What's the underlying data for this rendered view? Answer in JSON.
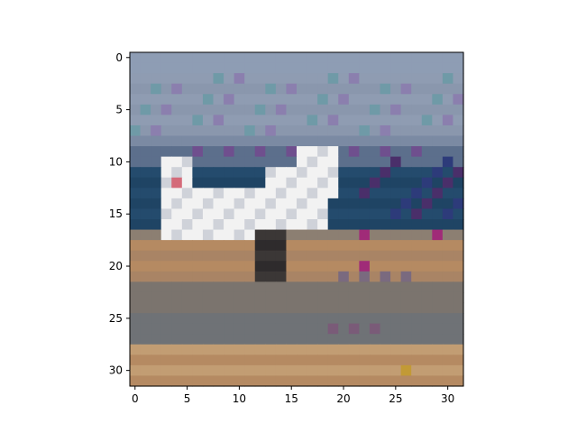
{
  "figure": {
    "x_ticks": [
      "0",
      "5",
      "10",
      "15",
      "20",
      "25",
      "30"
    ],
    "y_ticks": [
      "0",
      "5",
      "10",
      "15",
      "20",
      "25",
      "30"
    ]
  },
  "image": {
    "grid_size": 32,
    "description_colors": {
      "sky": "#8e9db4",
      "sky_dark": "#6f7f9a",
      "sea": "#1f4464",
      "sea_mid": "#3b5f84",
      "boat_white": "#f2f2f2",
      "boat_grey": "#cfd2d9",
      "sand": "#b58a62",
      "sand_light": "#c29d73",
      "shore_grey": "#6f7276",
      "dark": "#333333",
      "accent_purple": "#6b2f6f",
      "accent_magenta": "#a02b78",
      "accent_teal": "#2f6f86"
    }
  }
}
